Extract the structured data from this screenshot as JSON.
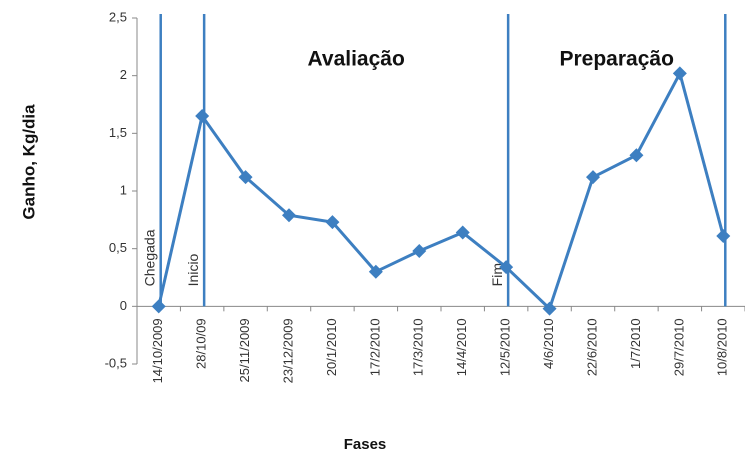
{
  "chart_data": {
    "type": "line",
    "y_label": "Ganho, Kg/dia",
    "x_label": "Fases",
    "categories": [
      "14/10/2009",
      "28/10/09",
      "25/11/2009",
      "23/12/2009",
      "20/1/2010",
      "17/2/2010",
      "17/3/2010",
      "14/4/2010",
      "12/5/2010",
      "4/6/2010",
      "22/6/2010",
      "1/7/2010",
      "29/7/2010",
      "10/8/2010"
    ],
    "values": [
      0,
      1.65,
      1.12,
      0.79,
      0.73,
      0.3,
      0.48,
      0.64,
      0.34,
      -0.02,
      1.12,
      1.31,
      2.02,
      0.61
    ],
    "color": "#3d7fc1",
    "ylim": [
      -0.5,
      2.5
    ],
    "yticks": [
      {
        "value": -0.5,
        "label": "-0,5"
      },
      0,
      {
        "value": 0.5,
        "label": "0,5"
      },
      1,
      {
        "value": 1.5,
        "label": "1,5"
      },
      2,
      {
        "value": 2.5,
        "label": "2,5"
      }
    ],
    "vlines": [
      {
        "category": "14/10/2009",
        "label": "Chegada"
      },
      {
        "category": "28/10/09",
        "label": "Inicio"
      },
      {
        "category": "12/5/2010",
        "label": "Fim"
      },
      {
        "category": "10/8/2010"
      }
    ],
    "phases": [
      "Avaliação",
      "Preparação"
    ],
    "grid": false
  }
}
